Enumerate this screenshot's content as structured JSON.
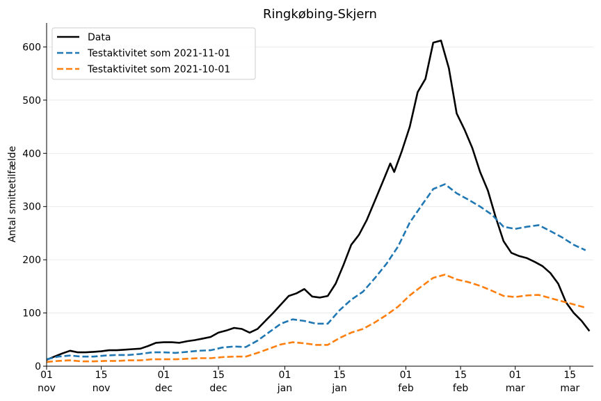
{
  "chart_data": {
    "type": "line",
    "title": "Ringkøbing-Skjern",
    "xlabel": "",
    "ylabel": "Antal smittetilfælde",
    "ylim": [
      0,
      645
    ],
    "xlim": [
      "2021-11-01",
      "2022-03-21"
    ],
    "grid": "horizontal",
    "legend_position": "top-left",
    "yticks": [
      0,
      100,
      200,
      300,
      400,
      500,
      600
    ],
    "xticks": [
      {
        "date": "2021-11-01",
        "day": "01",
        "month": "nov"
      },
      {
        "date": "2021-11-15",
        "day": "15",
        "month": "nov"
      },
      {
        "date": "2021-12-01",
        "day": "01",
        "month": "dec"
      },
      {
        "date": "2021-12-15",
        "day": "15",
        "month": "dec"
      },
      {
        "date": "2022-01-01",
        "day": "01",
        "month": "jan"
      },
      {
        "date": "2022-01-15",
        "day": "15",
        "month": "jan"
      },
      {
        "date": "2022-02-01",
        "day": "01",
        "month": "feb"
      },
      {
        "date": "2022-02-15",
        "day": "15",
        "month": "feb"
      },
      {
        "date": "2022-03-01",
        "day": "01",
        "month": "mar"
      },
      {
        "date": "2022-03-15",
        "day": "15",
        "month": "mar"
      }
    ],
    "series": [
      {
        "name": "Data",
        "color": "#000000",
        "style": "solid",
        "points": [
          [
            "2021-11-01",
            12
          ],
          [
            "2021-11-03",
            18
          ],
          [
            "2021-11-05",
            24
          ],
          [
            "2021-11-07",
            29
          ],
          [
            "2021-11-09",
            26
          ],
          [
            "2021-11-11",
            26
          ],
          [
            "2021-11-13",
            27
          ],
          [
            "2021-11-15",
            28
          ],
          [
            "2021-11-17",
            30
          ],
          [
            "2021-11-19",
            30
          ],
          [
            "2021-11-21",
            31
          ],
          [
            "2021-11-23",
            32
          ],
          [
            "2021-11-25",
            33
          ],
          [
            "2021-11-27",
            38
          ],
          [
            "2021-11-29",
            44
          ],
          [
            "2021-12-01",
            45
          ],
          [
            "2021-12-03",
            45
          ],
          [
            "2021-12-05",
            44
          ],
          [
            "2021-12-07",
            47
          ],
          [
            "2021-12-09",
            49
          ],
          [
            "2021-12-11",
            52
          ],
          [
            "2021-12-13",
            55
          ],
          [
            "2021-12-15",
            63
          ],
          [
            "2021-12-17",
            67
          ],
          [
            "2021-12-19",
            72
          ],
          [
            "2021-12-21",
            70
          ],
          [
            "2021-12-23",
            63
          ],
          [
            "2021-12-25",
            70
          ],
          [
            "2021-12-27",
            85
          ],
          [
            "2021-12-29",
            100
          ],
          [
            "2021-12-31",
            116
          ],
          [
            "2022-01-02",
            132
          ],
          [
            "2022-01-04",
            137
          ],
          [
            "2022-01-06",
            145
          ],
          [
            "2022-01-08",
            131
          ],
          [
            "2022-01-10",
            129
          ],
          [
            "2022-01-12",
            132
          ],
          [
            "2022-01-14",
            155
          ],
          [
            "2022-01-16",
            190
          ],
          [
            "2022-01-18",
            228
          ],
          [
            "2022-01-20",
            247
          ],
          [
            "2022-01-22",
            275
          ],
          [
            "2022-01-24",
            310
          ],
          [
            "2022-01-26",
            345
          ],
          [
            "2022-01-28",
            381
          ],
          [
            "2022-01-29",
            365
          ],
          [
            "2022-01-31",
            405
          ],
          [
            "2022-02-02",
            450
          ],
          [
            "2022-02-04",
            515
          ],
          [
            "2022-02-06",
            540
          ],
          [
            "2022-02-08",
            608
          ],
          [
            "2022-02-10",
            612
          ],
          [
            "2022-02-12",
            560
          ],
          [
            "2022-02-14",
            475
          ],
          [
            "2022-02-16",
            445
          ],
          [
            "2022-02-18",
            410
          ],
          [
            "2022-02-20",
            365
          ],
          [
            "2022-02-22",
            330
          ],
          [
            "2022-02-24",
            280
          ],
          [
            "2022-02-26",
            235
          ],
          [
            "2022-02-28",
            213
          ],
          [
            "2022-03-02",
            207
          ],
          [
            "2022-03-04",
            203
          ],
          [
            "2022-03-06",
            196
          ],
          [
            "2022-03-08",
            188
          ],
          [
            "2022-03-10",
            175
          ],
          [
            "2022-03-12",
            155
          ],
          [
            "2022-03-14",
            120
          ],
          [
            "2022-03-16",
            100
          ],
          [
            "2022-03-18",
            85
          ],
          [
            "2022-03-20",
            66
          ]
        ]
      },
      {
        "name": "Testaktivitet som 2021-11-01",
        "color": "#1f77b4",
        "style": "dashed",
        "points": [
          [
            "2021-11-01",
            13
          ],
          [
            "2021-11-04",
            18
          ],
          [
            "2021-11-07",
            20
          ],
          [
            "2021-11-10",
            18
          ],
          [
            "2021-11-13",
            18
          ],
          [
            "2021-11-16",
            20
          ],
          [
            "2021-11-19",
            21
          ],
          [
            "2021-11-22",
            21
          ],
          [
            "2021-11-25",
            23
          ],
          [
            "2021-11-28",
            26
          ],
          [
            "2021-12-01",
            26
          ],
          [
            "2021-12-04",
            25
          ],
          [
            "2021-12-07",
            27
          ],
          [
            "2021-12-10",
            29
          ],
          [
            "2021-12-13",
            30
          ],
          [
            "2021-12-16",
            35
          ],
          [
            "2021-12-19",
            37
          ],
          [
            "2021-12-22",
            36
          ],
          [
            "2021-12-25",
            48
          ],
          [
            "2021-12-28",
            64
          ],
          [
            "2021-12-31",
            80
          ],
          [
            "2022-01-03",
            88
          ],
          [
            "2022-01-06",
            85
          ],
          [
            "2022-01-09",
            80
          ],
          [
            "2022-01-12",
            80
          ],
          [
            "2022-01-15",
            105
          ],
          [
            "2022-01-18",
            125
          ],
          [
            "2022-01-21",
            140
          ],
          [
            "2022-01-24",
            165
          ],
          [
            "2022-01-27",
            192
          ],
          [
            "2022-01-30",
            225
          ],
          [
            "2022-02-02",
            270
          ],
          [
            "2022-02-05",
            302
          ],
          [
            "2022-02-08",
            333
          ],
          [
            "2022-02-11",
            342
          ],
          [
            "2022-02-14",
            325
          ],
          [
            "2022-02-17",
            313
          ],
          [
            "2022-02-20",
            300
          ],
          [
            "2022-02-23",
            285
          ],
          [
            "2022-02-26",
            262
          ],
          [
            "2022-03-01",
            258
          ],
          [
            "2022-03-04",
            262
          ],
          [
            "2022-03-07",
            265
          ],
          [
            "2022-03-10",
            254
          ],
          [
            "2022-03-13",
            242
          ],
          [
            "2022-03-16",
            228
          ],
          [
            "2022-03-19",
            218
          ]
        ]
      },
      {
        "name": "Testaktivitet som 2021-10-01",
        "color": "#ff7f0e",
        "style": "dashed",
        "points": [
          [
            "2021-11-01",
            8
          ],
          [
            "2021-11-04",
            10
          ],
          [
            "2021-11-07",
            11
          ],
          [
            "2021-11-10",
            9
          ],
          [
            "2021-11-13",
            9
          ],
          [
            "2021-11-16",
            10
          ],
          [
            "2021-11-19",
            10
          ],
          [
            "2021-11-22",
            11
          ],
          [
            "2021-11-25",
            11
          ],
          [
            "2021-11-28",
            13
          ],
          [
            "2021-12-01",
            13
          ],
          [
            "2021-12-04",
            13
          ],
          [
            "2021-12-07",
            14
          ],
          [
            "2021-12-10",
            15
          ],
          [
            "2021-12-13",
            15
          ],
          [
            "2021-12-16",
            17
          ],
          [
            "2021-12-19",
            18
          ],
          [
            "2021-12-22",
            18
          ],
          [
            "2021-12-25",
            25
          ],
          [
            "2021-12-28",
            33
          ],
          [
            "2021-12-31",
            41
          ],
          [
            "2022-01-03",
            45
          ],
          [
            "2022-01-06",
            43
          ],
          [
            "2022-01-09",
            40
          ],
          [
            "2022-01-12",
            40
          ],
          [
            "2022-01-15",
            53
          ],
          [
            "2022-01-18",
            63
          ],
          [
            "2022-01-21",
            70
          ],
          [
            "2022-01-24",
            82
          ],
          [
            "2022-01-27",
            96
          ],
          [
            "2022-01-30",
            112
          ],
          [
            "2022-02-02",
            133
          ],
          [
            "2022-02-05",
            150
          ],
          [
            "2022-02-08",
            166
          ],
          [
            "2022-02-11",
            172
          ],
          [
            "2022-02-14",
            163
          ],
          [
            "2022-02-17",
            158
          ],
          [
            "2022-02-20",
            151
          ],
          [
            "2022-02-23",
            142
          ],
          [
            "2022-02-26",
            132
          ],
          [
            "2022-03-01",
            130
          ],
          [
            "2022-03-04",
            133
          ],
          [
            "2022-03-07",
            134
          ],
          [
            "2022-03-10",
            128
          ],
          [
            "2022-03-13",
            122
          ],
          [
            "2022-03-16",
            116
          ],
          [
            "2022-03-19",
            110
          ]
        ]
      }
    ]
  }
}
